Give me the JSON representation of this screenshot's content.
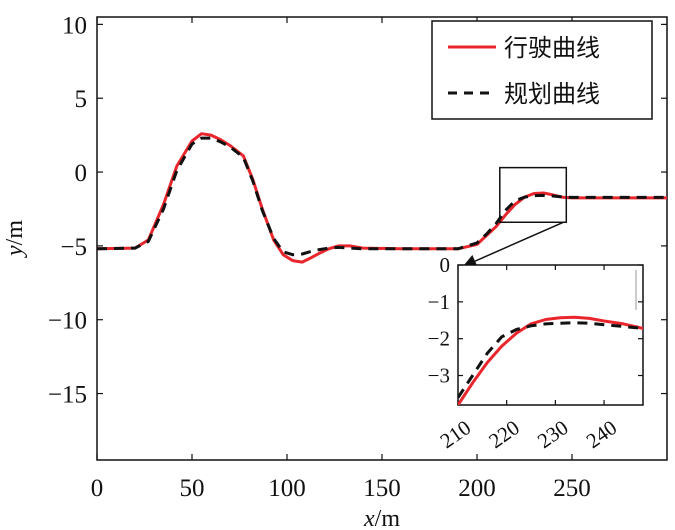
{
  "chart_data": [
    {
      "type": "line",
      "xlabel": "x/m",
      "ylabel": "y/m",
      "xlim": [
        0,
        300
      ],
      "ylim": [
        -19.5,
        10.5
      ],
      "xticks": [
        0,
        50,
        100,
        150,
        200,
        250
      ],
      "yticks": [
        10,
        5,
        0,
        -5,
        -10,
        -15
      ],
      "xtick_labels": [
        "0",
        "50",
        "100",
        "150",
        "200",
        "250"
      ],
      "ytick_labels": [
        "10",
        "5",
        "0",
        "−5",
        "−10",
        "−15"
      ],
      "legend_position": "top-right",
      "series": [
        {
          "name": "行驶曲线",
          "color": "#e8262c",
          "style": "solid",
          "x": [
            0,
            20,
            27,
            35,
            42,
            50,
            55,
            60,
            65,
            70,
            77,
            82,
            87,
            93,
            98,
            103,
            108,
            112,
            117,
            122,
            127,
            133,
            140,
            160,
            190,
            200,
            205,
            210,
            215,
            220,
            225,
            230,
            235,
            240,
            245,
            250,
            255,
            275,
            300
          ],
          "y": [
            -5.2,
            -5.15,
            -4.6,
            -2.2,
            0.4,
            2.1,
            2.6,
            2.5,
            2.2,
            1.8,
            1.1,
            -0.5,
            -2.5,
            -4.6,
            -5.6,
            -6.0,
            -6.1,
            -5.85,
            -5.5,
            -5.2,
            -5.0,
            -5.0,
            -5.15,
            -5.2,
            -5.2,
            -4.9,
            -4.3,
            -3.7,
            -2.9,
            -2.2,
            -1.7,
            -1.45,
            -1.42,
            -1.55,
            -1.7,
            -1.75,
            -1.75,
            -1.75,
            -1.75
          ]
        },
        {
          "name": "规划曲线",
          "color": "#111111",
          "style": "dashed",
          "x": [
            0,
            20,
            27,
            35,
            42,
            50,
            55,
            60,
            65,
            70,
            77,
            82,
            87,
            93,
            98,
            103,
            108,
            112,
            117,
            122,
            127,
            133,
            140,
            160,
            190,
            200,
            205,
            210,
            215,
            220,
            225,
            230,
            235,
            240,
            245,
            250,
            255,
            275,
            300
          ],
          "y": [
            -5.2,
            -5.15,
            -4.7,
            -2.5,
            0.1,
            1.9,
            2.3,
            2.3,
            2.05,
            1.7,
            1.0,
            -0.6,
            -2.6,
            -4.5,
            -5.4,
            -5.6,
            -5.55,
            -5.4,
            -5.25,
            -5.15,
            -5.1,
            -5.15,
            -5.2,
            -5.2,
            -5.2,
            -4.8,
            -4.2,
            -3.5,
            -2.6,
            -1.95,
            -1.7,
            -1.6,
            -1.58,
            -1.62,
            -1.68,
            -1.72,
            -1.72,
            -1.72,
            -1.72
          ]
        }
      ],
      "zoom_box_data": {
        "x": [
          212,
          247
        ],
        "y": [
          -3.4,
          0.3
        ]
      }
    },
    {
      "type": "line",
      "xlim": [
        210,
        248
      ],
      "ylim": [
        -3.8,
        0
      ],
      "xticks": [
        210,
        220,
        230,
        240
      ],
      "yticks": [
        0,
        -1,
        -2,
        -3
      ],
      "xtick_labels": [
        "210",
        "220",
        "230",
        "240"
      ],
      "ytick_labels": [
        "0",
        "−1",
        "−2",
        "−3"
      ],
      "series": [
        {
          "name": "行驶曲线",
          "color": "#e8262c",
          "style": "solid",
          "x": [
            210,
            213,
            216,
            219,
            222,
            225,
            228,
            231,
            234,
            237,
            240,
            244,
            248
          ],
          "y": [
            -3.8,
            -3.2,
            -2.65,
            -2.2,
            -1.85,
            -1.6,
            -1.48,
            -1.43,
            -1.42,
            -1.45,
            -1.52,
            -1.6,
            -1.72
          ]
        },
        {
          "name": "规划曲线",
          "color": "#111111",
          "style": "dashed",
          "x": [
            210,
            213,
            216,
            219,
            222,
            225,
            228,
            231,
            234,
            237,
            240,
            244,
            248
          ],
          "y": [
            -3.6,
            -3.0,
            -2.4,
            -1.95,
            -1.75,
            -1.65,
            -1.6,
            -1.58,
            -1.57,
            -1.58,
            -1.62,
            -1.67,
            -1.72
          ]
        }
      ]
    }
  ]
}
